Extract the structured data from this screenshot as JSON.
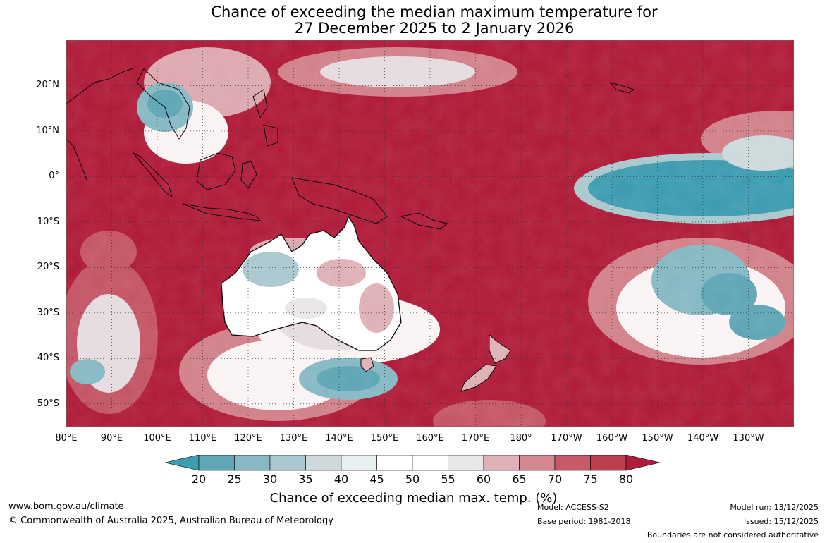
{
  "title": {
    "line1": "Chance of exceeding the median maximum temperature for",
    "line2": "27 December 2025 to 2 January 2026"
  },
  "map": {
    "extent": {
      "lon_west": 80,
      "lon_east": 240,
      "lat_south": -55,
      "lat_north": 30
    },
    "lat_ticks": [
      {
        "value": 20,
        "label": "20°N"
      },
      {
        "value": 10,
        "label": "10°N"
      },
      {
        "value": 0,
        "label": "0°"
      },
      {
        "value": -10,
        "label": "10°S"
      },
      {
        "value": -20,
        "label": "20°S"
      },
      {
        "value": -30,
        "label": "30°S"
      },
      {
        "value": -40,
        "label": "40°S"
      },
      {
        "value": -50,
        "label": "50°S"
      }
    ],
    "lon_ticks": [
      {
        "value": 80,
        "label": "80°E"
      },
      {
        "value": 90,
        "label": "90°E"
      },
      {
        "value": 100,
        "label": "100°E"
      },
      {
        "value": 110,
        "label": "110°E"
      },
      {
        "value": 120,
        "label": "120°E"
      },
      {
        "value": 130,
        "label": "130°E"
      },
      {
        "value": 140,
        "label": "140°E"
      },
      {
        "value": 150,
        "label": "150°E"
      },
      {
        "value": 160,
        "label": "160°E"
      },
      {
        "value": 170,
        "label": "170°E"
      },
      {
        "value": 180,
        "label": "180°"
      },
      {
        "value": 190,
        "label": "170°W"
      },
      {
        "value": 200,
        "label": "160°W"
      },
      {
        "value": 210,
        "label": "150°W"
      },
      {
        "value": 220,
        "label": "140°W"
      },
      {
        "value": 230,
        "label": "130°W"
      }
    ],
    "grid": true,
    "background_color": "#b01c39"
  },
  "colorbar": {
    "ticks": [
      "20",
      "25",
      "30",
      "35",
      "40",
      "45",
      "50",
      "55",
      "60",
      "65",
      "70",
      "75",
      "80"
    ],
    "colors": [
      "#5fa6b6",
      "#86b9c4",
      "#aac8ce",
      "#cdd9db",
      "#e8eff1",
      "#ffffff",
      "#ffffff",
      "#e9e6e7",
      "#dfb1b6",
      "#d4878e",
      "#c65a69",
      "#bd3f4f"
    ],
    "under_color": "#3e9cb0",
    "over_color": "#b01c39",
    "label": "Chance of exceeding median max. temp. (%)"
  },
  "footer": {
    "website": "www.bom.gov.au/climate",
    "copyright": "© Commonwealth of Australia 2025, Australian Bureau of Meteorology",
    "model": "Model: ACCESS-S2",
    "base_period": "Base period: 1981-2018",
    "model_run": "Model run: 13/12/2025",
    "issued": "Issued: 15/12/2025",
    "disclaimer": "Boundaries are not considered authoritative"
  }
}
